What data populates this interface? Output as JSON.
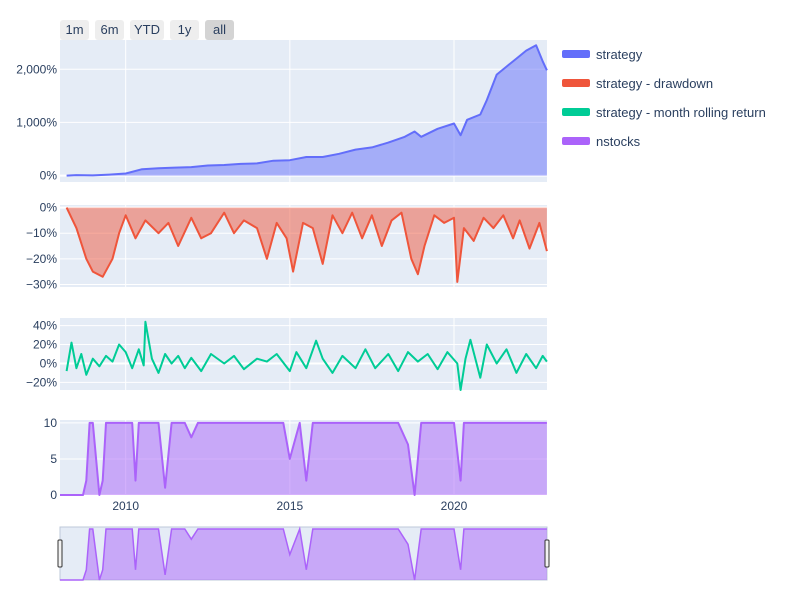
{
  "range_selector": {
    "buttons": [
      "1m",
      "6m",
      "YTD",
      "1y",
      "all"
    ],
    "active": "all"
  },
  "legend": [
    {
      "label": "strategy",
      "color": "#636efa"
    },
    {
      "label": "strategy - drawdown",
      "color": "#ef553b"
    },
    {
      "label": "strategy - month rolling return",
      "color": "#00cc96"
    },
    {
      "label": "nstocks",
      "color": "#ab63fa"
    }
  ],
  "colors": {
    "plot_bg": "#e5ecf6",
    "grid": "#ffffff",
    "text": "#2a3f5f"
  },
  "chart_data": [
    {
      "type": "area",
      "name": "strategy",
      "x_range": [
        "2008-01-01",
        "2022-10-31"
      ],
      "ylim": [
        -1.2,
        25.5
      ],
      "y_ticks": [
        0,
        10,
        20
      ],
      "y_tick_labels": [
        "0%",
        "1,000%",
        "2,000%"
      ],
      "x": [
        2008.2,
        2008.5,
        2009.0,
        2009.5,
        2010.0,
        2010.5,
        2011.0,
        2011.5,
        2012.0,
        2012.5,
        2013.0,
        2013.5,
        2014.0,
        2014.5,
        2015.0,
        2015.5,
        2016.0,
        2016.5,
        2017.0,
        2017.5,
        2018.0,
        2018.5,
        2018.8,
        2019.0,
        2019.5,
        2020.0,
        2020.2,
        2020.4,
        2020.8,
        2021.0,
        2021.3,
        2021.6,
        2021.9,
        2022.2,
        2022.5,
        2022.7,
        2022.83
      ],
      "y": [
        0,
        0.1,
        0.05,
        0.2,
        0.4,
        1.2,
        1.4,
        1.5,
        1.6,
        1.9,
        2.0,
        2.2,
        2.3,
        2.8,
        2.9,
        3.5,
        3.5,
        4.1,
        4.9,
        5.3,
        6.2,
        7.3,
        8.3,
        7.3,
        8.8,
        9.8,
        7.6,
        10.5,
        11.5,
        14.2,
        19.0,
        20.5,
        22.0,
        23.5,
        24.5,
        21.5,
        19.8
      ]
    },
    {
      "type": "area",
      "name": "strategy - drawdown",
      "x_range": [
        "2008-01-01",
        "2022-10-31"
      ],
      "ylim": [
        -0.31,
        0.01
      ],
      "y_ticks": [
        0,
        -0.1,
        -0.2,
        -0.3
      ],
      "y_tick_labels": [
        "0%",
        "−10%",
        "−20%",
        "−30%"
      ],
      "x": [
        2008.2,
        2008.5,
        2008.8,
        2009.0,
        2009.3,
        2009.6,
        2009.8,
        2010.0,
        2010.3,
        2010.6,
        2011.0,
        2011.3,
        2011.6,
        2012.0,
        2012.3,
        2012.6,
        2013.0,
        2013.3,
        2013.6,
        2014.0,
        2014.3,
        2014.6,
        2014.9,
        2015.1,
        2015.4,
        2015.7,
        2016.0,
        2016.3,
        2016.6,
        2016.9,
        2017.2,
        2017.5,
        2017.8,
        2018.1,
        2018.4,
        2018.7,
        2018.9,
        2019.1,
        2019.4,
        2019.7,
        2020.0,
        2020.1,
        2020.3,
        2020.6,
        2020.9,
        2021.2,
        2021.5,
        2021.8,
        2022.0,
        2022.3,
        2022.6,
        2022.83
      ],
      "y": [
        0,
        -0.08,
        -0.2,
        -0.25,
        -0.27,
        -0.2,
        -0.1,
        -0.03,
        -0.12,
        -0.05,
        -0.1,
        -0.06,
        -0.15,
        -0.04,
        -0.12,
        -0.1,
        -0.02,
        -0.1,
        -0.05,
        -0.08,
        -0.2,
        -0.06,
        -0.12,
        -0.25,
        -0.06,
        -0.08,
        -0.22,
        -0.03,
        -0.1,
        -0.02,
        -0.12,
        -0.03,
        -0.15,
        -0.05,
        -0.02,
        -0.2,
        -0.26,
        -0.15,
        -0.03,
        -0.06,
        -0.04,
        -0.29,
        -0.08,
        -0.13,
        -0.04,
        -0.08,
        -0.03,
        -0.12,
        -0.05,
        -0.16,
        -0.06,
        -0.17
      ]
    },
    {
      "type": "line",
      "name": "strategy - month rolling return",
      "x_range": [
        "2008-01-01",
        "2022-10-31"
      ],
      "ylim": [
        -0.28,
        0.48
      ],
      "y_ticks": [
        0.4,
        0.2,
        0,
        -0.2
      ],
      "y_tick_labels": [
        "40%",
        "20%",
        "0%",
        "−20%"
      ],
      "x": [
        2008.2,
        2008.35,
        2008.5,
        2008.65,
        2008.8,
        2009.0,
        2009.2,
        2009.4,
        2009.6,
        2009.8,
        2010.0,
        2010.2,
        2010.4,
        2010.55,
        2010.6,
        2010.8,
        2011.0,
        2011.2,
        2011.4,
        2011.6,
        2011.8,
        2012.0,
        2012.3,
        2012.6,
        2013.0,
        2013.3,
        2013.6,
        2014.0,
        2014.3,
        2014.6,
        2015.0,
        2015.2,
        2015.5,
        2015.8,
        2016.0,
        2016.3,
        2016.6,
        2017.0,
        2017.3,
        2017.6,
        2018.0,
        2018.3,
        2018.6,
        2018.9,
        2019.2,
        2019.5,
        2019.8,
        2020.1,
        2020.2,
        2020.35,
        2020.5,
        2020.8,
        2021.0,
        2021.3,
        2021.6,
        2021.9,
        2022.2,
        2022.5,
        2022.7,
        2022.83
      ],
      "y": [
        -0.08,
        0.22,
        -0.05,
        0.1,
        -0.12,
        0.05,
        -0.03,
        0.08,
        0.02,
        0.2,
        0.12,
        -0.05,
        0.15,
        -0.02,
        0.44,
        0.05,
        -0.1,
        0.1,
        0.0,
        0.08,
        -0.05,
        0.06,
        -0.08,
        0.1,
        0.0,
        0.08,
        -0.06,
        0.05,
        0.02,
        0.1,
        -0.08,
        0.12,
        -0.05,
        0.24,
        0.05,
        -0.1,
        0.08,
        -0.05,
        0.15,
        -0.05,
        0.1,
        -0.08,
        0.12,
        0.02,
        0.1,
        -0.06,
        0.12,
        0.0,
        -0.28,
        0.05,
        0.25,
        -0.15,
        0.2,
        0.0,
        0.15,
        -0.1,
        0.1,
        -0.05,
        0.08,
        0.02
      ]
    },
    {
      "type": "area",
      "name": "nstocks",
      "x_range": [
        "2008-01-01",
        "2022-10-31"
      ],
      "ylim": [
        0,
        10.4
      ],
      "y_ticks": [
        0,
        5,
        10
      ],
      "y_tick_labels": [
        "0",
        "5",
        "10"
      ],
      "x_ticks": [
        2010,
        2015,
        2020
      ],
      "x_tick_labels": [
        "2010",
        "2015",
        "2020"
      ],
      "x": [
        2008.0,
        2008.7,
        2008.8,
        2008.9,
        2009.0,
        2009.2,
        2009.3,
        2009.4,
        2009.5,
        2009.6,
        2009.8,
        2010.0,
        2010.2,
        2010.3,
        2010.4,
        2010.5,
        2010.6,
        2011.0,
        2011.2,
        2011.4,
        2011.6,
        2011.8,
        2012.0,
        2012.2,
        2012.4,
        2012.6,
        2013.0,
        2013.5,
        2013.8,
        2014.0,
        2014.3,
        2014.5,
        2014.8,
        2015.0,
        2015.3,
        2015.5,
        2015.7,
        2015.9,
        2016.0,
        2016.3,
        2016.6,
        2017.0,
        2017.5,
        2017.8,
        2018.0,
        2018.3,
        2018.6,
        2018.8,
        2019.0,
        2019.2,
        2019.5,
        2020.0,
        2020.2,
        2020.3,
        2020.5,
        2020.8,
        2021.0,
        2021.3,
        2021.6,
        2022.0,
        2022.3,
        2022.5,
        2022.7,
        2022.83
      ],
      "y": [
        0,
        0,
        2,
        10,
        10,
        0,
        2,
        10,
        10,
        10,
        10,
        10,
        10,
        2,
        10,
        10,
        10,
        10,
        1,
        10,
        10,
        10,
        8,
        10,
        10,
        10,
        10,
        10,
        10,
        10,
        10,
        10,
        10,
        5,
        10,
        2,
        10,
        10,
        10,
        10,
        10,
        10,
        10,
        10,
        10,
        10,
        7,
        0,
        10,
        10,
        10,
        10,
        2,
        10,
        10,
        10,
        10,
        10,
        10,
        10,
        10,
        10,
        10,
        10
      ]
    }
  ]
}
